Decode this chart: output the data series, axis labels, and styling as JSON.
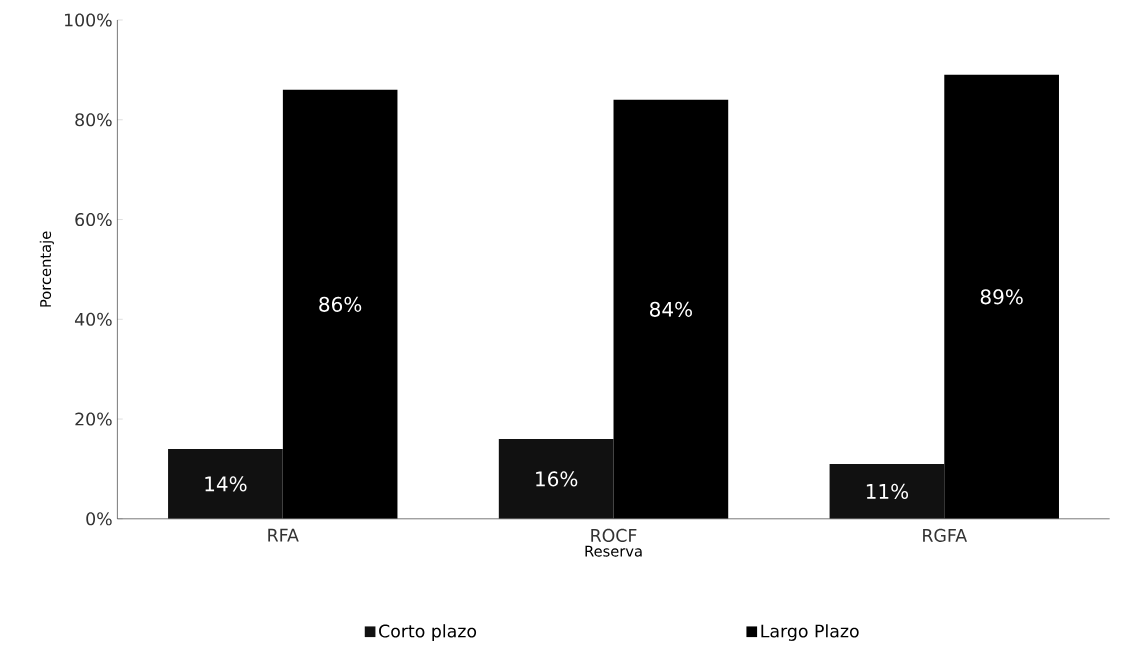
{
  "chart_data": {
    "type": "bar",
    "xlabel": "Reserva",
    "ylabel": "Porcentaje",
    "categories": [
      "RFA",
      "ROCF",
      "RGFA"
    ],
    "series": [
      {
        "name": "Corto plazo",
        "color": "#111111",
        "values": [
          14,
          16,
          11
        ],
        "value_labels": [
          "14%",
          "16%",
          "11%"
        ]
      },
      {
        "name": "Largo Plazo",
        "color": "#000000",
        "values": [
          86,
          84,
          89
        ],
        "value_labels": [
          "86%",
          "84%",
          "89%"
        ]
      }
    ],
    "ylim": [
      0,
      100
    ],
    "yticks": [
      {
        "value": 0,
        "label": "0%"
      },
      {
        "value": 20,
        "label": "20%"
      },
      {
        "value": 40,
        "label": "40%"
      },
      {
        "value": 60,
        "label": "60%"
      },
      {
        "value": 80,
        "label": "80%"
      },
      {
        "value": 100,
        "label": "100%"
      }
    ],
    "grid": false,
    "legend": "bottom"
  }
}
